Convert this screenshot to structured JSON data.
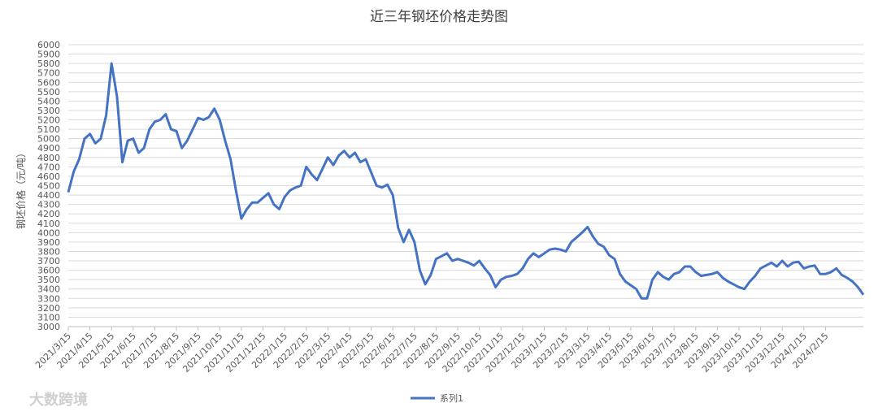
{
  "chart_data": {
    "type": "line",
    "title": "近三年钢坯价格走势图",
    "y_label": "钢坯价格（元/吨）",
    "watermark": "大数跨境",
    "categories": [
      "2021/3/15",
      null,
      null,
      null,
      "2021/4/15",
      null,
      null,
      null,
      "2021/5/15",
      null,
      null,
      null,
      "2021/6/15",
      null,
      null,
      null,
      "2021/7/15",
      null,
      null,
      null,
      "2021/8/15",
      null,
      null,
      null,
      "2021/9/15",
      null,
      null,
      null,
      "2021/10/15",
      null,
      null,
      null,
      "2021/11/15",
      null,
      null,
      null,
      "2021/12/15",
      null,
      null,
      null,
      "2022/1/15",
      null,
      null,
      null,
      "2022/2/15",
      null,
      null,
      null,
      "2022/3/15",
      null,
      null,
      null,
      "2022/4/15",
      null,
      null,
      null,
      "2022/5/15",
      null,
      null,
      null,
      "2022/6/15",
      null,
      null,
      null,
      "2022/7/15",
      null,
      null,
      null,
      "2022/8/15",
      null,
      null,
      null,
      "2022/9/15",
      null,
      null,
      null,
      "2022/10/15",
      null,
      null,
      null,
      "2022/11/15",
      null,
      null,
      null,
      "2022/12/15",
      null,
      null,
      null,
      "2023/1/15",
      null,
      null,
      null,
      "2023/2/15",
      null,
      null,
      null,
      "2023/3/15",
      null,
      null,
      null,
      "2023/4/15",
      null,
      null,
      null,
      "2023/5/15",
      null,
      null,
      null,
      "2023/6/15",
      null,
      null,
      null,
      "2023/7/15",
      null,
      null,
      null,
      "2023/8/15",
      null,
      null,
      null,
      "2023/9/15",
      null,
      null,
      null,
      "2023/10/15",
      null,
      null,
      null,
      "2023/11/15",
      null,
      null,
      null,
      "2023/12/15",
      null,
      null,
      null,
      "2024/1/15",
      null,
      null,
      null,
      "2024/2/15",
      null,
      null,
      null,
      null,
      null,
      null,
      null
    ],
    "series": [
      {
        "name": "系列1",
        "color": "#4472c4",
        "values": [
          4430,
          4650,
          4780,
          5000,
          5050,
          4950,
          5000,
          5250,
          5800,
          5450,
          4750,
          4980,
          5000,
          4850,
          4900,
          5100,
          5180,
          5200,
          5260,
          5100,
          5080,
          4900,
          4980,
          5100,
          5220,
          5200,
          5230,
          5320,
          5200,
          4980,
          4780,
          4450,
          4150,
          4250,
          4320,
          4320,
          4370,
          4420,
          4300,
          4250,
          4380,
          4450,
          4480,
          4500,
          4700,
          4620,
          4560,
          4680,
          4800,
          4720,
          4820,
          4870,
          4800,
          4850,
          4750,
          4780,
          4640,
          4500,
          4480,
          4510,
          4400,
          4050,
          3900,
          4030,
          3900,
          3600,
          3450,
          3550,
          3720,
          3750,
          3780,
          3700,
          3720,
          3700,
          3680,
          3650,
          3700,
          3620,
          3550,
          3420,
          3500,
          3530,
          3540,
          3560,
          3620,
          3720,
          3780,
          3740,
          3780,
          3820,
          3830,
          3820,
          3800,
          3900,
          3950,
          4000,
          4060,
          3960,
          3880,
          3850,
          3760,
          3720,
          3560,
          3480,
          3440,
          3400,
          3300,
          3300,
          3500,
          3580,
          3530,
          3500,
          3560,
          3580,
          3640,
          3640,
          3580,
          3540,
          3550,
          3560,
          3580,
          3520,
          3480,
          3450,
          3420,
          3400,
          3480,
          3540,
          3620,
          3650,
          3680,
          3640,
          3700,
          3640,
          3680,
          3690,
          3620,
          3640,
          3650,
          3560,
          3560,
          3580,
          3620,
          3550,
          3520,
          3480,
          3420,
          3340
        ]
      }
    ],
    "ylim": [
      3000,
      6000
    ],
    "yticks": [
      3000,
      3100,
      3200,
      3300,
      3400,
      3500,
      3600,
      3700,
      3800,
      3900,
      4000,
      4100,
      4200,
      4300,
      4400,
      4500,
      4600,
      4700,
      4800,
      4900,
      5000,
      5100,
      5200,
      5300,
      5400,
      5500,
      5600,
      5700,
      5800,
      5900,
      6000
    ],
    "grid": true
  }
}
